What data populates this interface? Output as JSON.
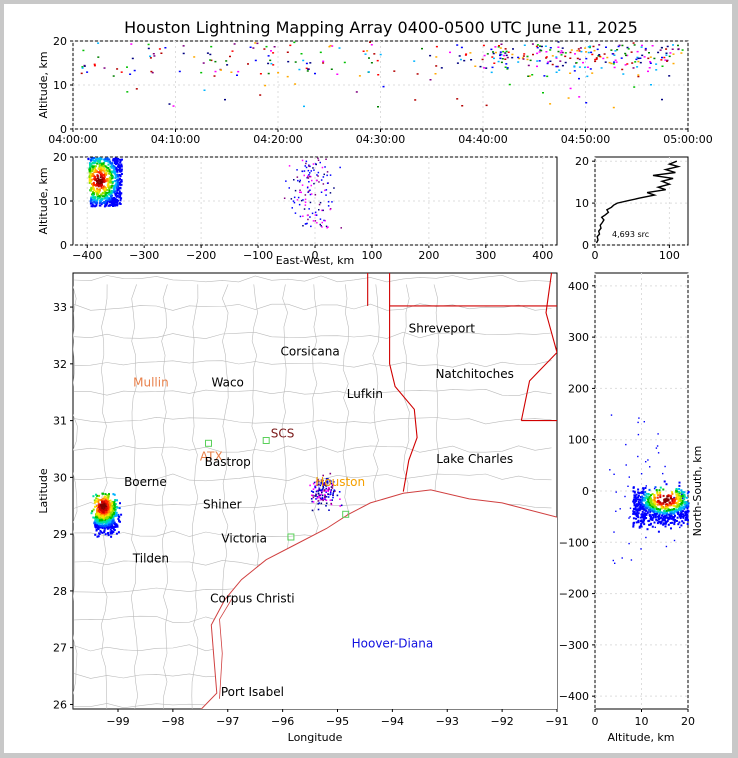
{
  "title": "Houston Lightning Mapping Array 0400-0500 UTC June 11, 2025",
  "colors": {
    "border": "#d00000",
    "county": "#bbbbbb",
    "coast": "#d04040",
    "grid": "#dddddd"
  },
  "chart_data": [
    {
      "type": "scatter",
      "panel": "altitude-vs-time",
      "ylabel": "Altitude, km",
      "ylim": [
        0,
        20
      ],
      "yticks": [
        "0",
        "10",
        "20"
      ],
      "xlim_minutes": [
        0,
        60
      ],
      "xticks": [
        "04:00:00",
        "04:10:00",
        "04:20:00",
        "04:30:00",
        "04:40:00",
        "04:50:00",
        "05:00:00"
      ],
      "clusters": [
        {
          "t0": 0.5,
          "t1": 59.5,
          "z0": 12,
          "z1": 20,
          "n": 230
        },
        {
          "t0": 40,
          "t1": 59,
          "z0": 14,
          "z1": 19.5,
          "n": 150
        },
        {
          "t0": 5,
          "t1": 59,
          "z0": 5,
          "z1": 12,
          "n": 30
        }
      ]
    },
    {
      "type": "scatter",
      "panel": "altitude-vs-east-west",
      "xlabel": "East-West, km",
      "ylabel": "Altitude, km",
      "xlim": [
        -425,
        425
      ],
      "ylim": [
        0,
        20
      ],
      "xticks": [
        "−400",
        "−300",
        "−200",
        "−100",
        "0",
        "100",
        "200",
        "300",
        "400"
      ],
      "yticks": [
        "0",
        "10",
        "20"
      ],
      "clusters": [
        {
          "x0": -400,
          "x1": -340,
          "z0": 9,
          "z1": 20,
          "n": 650
        },
        {
          "x0": -70,
          "x1": 55,
          "z0": 4,
          "z1": 20,
          "n": 140
        }
      ]
    },
    {
      "type": "line",
      "panel": "source-altitude-histogram",
      "xlim": [
        0,
        125
      ],
      "ylim": [
        0,
        21
      ],
      "xticks": [
        "0",
        "100"
      ],
      "yticks": [
        "0",
        "10",
        "20"
      ],
      "annotation": "4,693 src",
      "series": [
        {
          "x": [
            2,
            4,
            3,
            6,
            5,
            8,
            7,
            10,
            12,
            9,
            14,
            18,
            16,
            22,
            25,
            30,
            45,
            60,
            80,
            70,
            95,
            85,
            100,
            90,
            105,
            78,
            108,
            95,
            112,
            100,
            110
          ],
          "y": [
            0.5,
            1.2,
            2,
            2.6,
            3.3,
            4,
            4.7,
            5.4,
            6,
            6.6,
            7.2,
            7.8,
            8.4,
            9,
            9.5,
            10,
            10.6,
            11.2,
            11.9,
            12.5,
            13.2,
            13.8,
            14.5,
            15.2,
            15.9,
            16.6,
            17.3,
            18,
            18.7,
            19.3,
            20
          ]
        }
      ]
    },
    {
      "type": "scatter",
      "panel": "plan-view-map",
      "xlabel": "Longitude",
      "ylabel": "Latitude",
      "xlim": [
        -99.82,
        -91
      ],
      "ylim": [
        25.92,
        33.6
      ],
      "xticks": [
        "−99",
        "−98",
        "−97",
        "−96",
        "−95",
        "−94",
        "−93",
        "−92",
        "−91"
      ],
      "yticks": [
        "26",
        "27",
        "28",
        "29",
        "30",
        "31",
        "32",
        "33"
      ],
      "clusters": [
        {
          "lon0": -99.55,
          "lon1": -98.92,
          "lat0": 28.9,
          "lat1": 29.8,
          "n": 650
        },
        {
          "lon0": -95.6,
          "lon1": -94.9,
          "lat0": 29.35,
          "lat1": 30.15,
          "n": 150
        }
      ],
      "stations": [
        {
          "lon": -97.35,
          "lat": 30.6
        },
        {
          "lon": -96.3,
          "lat": 30.65
        },
        {
          "lon": -94.85,
          "lat": 29.35
        },
        {
          "lon": -95.85,
          "lat": 28.95
        }
      ],
      "labels": [
        {
          "text": "Shreveport",
          "lon": -93.1,
          "lat": 32.55,
          "color": "#000000"
        },
        {
          "text": "Corsicana",
          "lon": -95.5,
          "lat": 32.15,
          "color": "#000000"
        },
        {
          "text": "Natchitoches",
          "lon": -92.5,
          "lat": 31.75,
          "color": "#000000"
        },
        {
          "text": "Mullin",
          "lon": -98.4,
          "lat": 31.6,
          "color": "#e8804a"
        },
        {
          "text": "Waco",
          "lon": -97.0,
          "lat": 31.6,
          "color": "#000000"
        },
        {
          "text": "Lufkin",
          "lon": -94.5,
          "lat": 31.4,
          "color": "#000000"
        },
        {
          "text": "SCS",
          "lon": -96.0,
          "lat": 30.7,
          "color": "#7a1a1a"
        },
        {
          "text": "ATX",
          "lon": -97.3,
          "lat": 30.3,
          "color": "#e8804a"
        },
        {
          "text": "Bastrop",
          "lon": -97.0,
          "lat": 30.2,
          "color": "#000000"
        },
        {
          "text": "Lake Charles",
          "lon": -92.5,
          "lat": 30.25,
          "color": "#000000"
        },
        {
          "text": "Boerne",
          "lon": -98.5,
          "lat": 29.85,
          "color": "#000000"
        },
        {
          "text": "Houston",
          "lon": -94.95,
          "lat": 29.85,
          "color": "#f5a000"
        },
        {
          "text": "Shiner",
          "lon": -97.1,
          "lat": 29.45,
          "color": "#000000"
        },
        {
          "text": "Victoria",
          "lon": -96.7,
          "lat": 28.85,
          "color": "#000000"
        },
        {
          "text": "Tilden",
          "lon": -98.4,
          "lat": 28.5,
          "color": "#000000"
        },
        {
          "text": "Corpus Christi",
          "lon": -96.55,
          "lat": 27.8,
          "color": "#000000"
        },
        {
          "text": "Hoover-Diana",
          "lon": -94.0,
          "lat": 27.0,
          "color": "#1010e0"
        },
        {
          "text": "Port Isabel",
          "lon": -96.55,
          "lat": 26.15,
          "color": "#000000"
        }
      ]
    },
    {
      "type": "scatter",
      "panel": "north-south-vs-altitude",
      "xlabel": "Altitude, km",
      "ylabel": "North-South, km",
      "xlim": [
        0,
        20
      ],
      "ylim": [
        -425,
        425
      ],
      "xticks": [
        "0",
        "10",
        "20"
      ],
      "yticks": [
        "−400",
        "−300",
        "−200",
        "−100",
        "0",
        "100",
        "200",
        "300",
        "400"
      ],
      "clusters": [
        {
          "z0": 8,
          "z1": 20,
          "y0": -100,
          "y1": 40,
          "n": 700
        },
        {
          "z0": 3,
          "z1": 19,
          "y0": -140,
          "y1": 150,
          "n": 50
        }
      ]
    }
  ],
  "labels": {
    "p1_ylabel": "Altitude, km",
    "p2_ylabel": "Altitude, km",
    "p2_xlabel": "East-West, km",
    "p4_xlabel": "Longitude",
    "p4_ylabel": "Latitude",
    "p5_xlabel": "Altitude, km",
    "p5_ylabel": "North-South, km",
    "histo_note": "4,693 src"
  },
  "colormap": [
    "#0000ff",
    "#0055ff",
    "#00b4ff",
    "#00e0a0",
    "#00c000",
    "#90e000",
    "#ffe000",
    "#ff9000",
    "#ff2000",
    "#c80000",
    "#800000"
  ]
}
